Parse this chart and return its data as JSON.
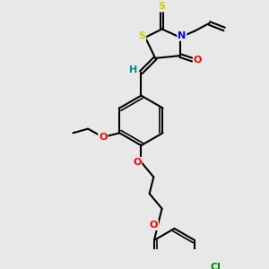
{
  "background_color": "#e8e8e8",
  "bond_color": "#000000",
  "atom_colors": {
    "S": "#cccc00",
    "N": "#0000ff",
    "O": "#ff0000",
    "Cl": "#008800",
    "C": "#000000",
    "H": "#008888"
  },
  "figsize": [
    3.0,
    3.0
  ],
  "dpi": 100
}
